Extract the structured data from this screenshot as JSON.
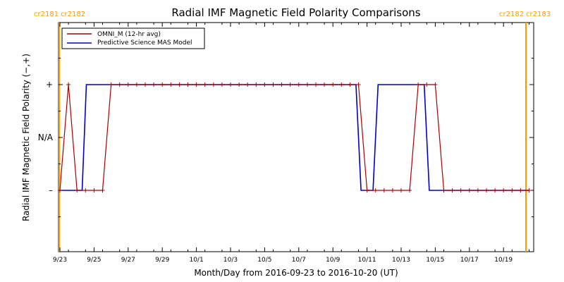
{
  "chart_data": {
    "type": "line",
    "title": "Radial IMF Magnetic Field Polarity Comparisons",
    "xlabel": "Month/Day from 2016-09-23 to 2016-10-20 (UT)",
    "ylabel": "Radial IMF Magnetic Field Polarity (−,+)",
    "x_start_date": "2016-09-23",
    "x_range_days": [
      0,
      27.5
    ],
    "y_ticks": [
      {
        "value": 1,
        "label": "+"
      },
      {
        "value": 0,
        "label": "N/A"
      },
      {
        "value": -1,
        "label": "–"
      }
    ],
    "ylim": [
      -2,
      2
    ],
    "x_ticks": [
      {
        "day": 0,
        "label": "9/23"
      },
      {
        "day": 2,
        "label": "9/25"
      },
      {
        "day": 4,
        "label": "9/27"
      },
      {
        "day": 6,
        "label": "9/29"
      },
      {
        "day": 8,
        "label": "10/1"
      },
      {
        "day": 10,
        "label": "10/3"
      },
      {
        "day": 12,
        "label": "10/5"
      },
      {
        "day": 14,
        "label": "10/7"
      },
      {
        "day": 16,
        "label": "10/9"
      },
      {
        "day": 18,
        "label": "10/11"
      },
      {
        "day": 20,
        "label": "10/13"
      },
      {
        "day": 22,
        "label": "10/15"
      },
      {
        "day": 24,
        "label": "10/17"
      },
      {
        "day": 26,
        "label": "10/19"
      }
    ],
    "carrington_markers": [
      {
        "day": 0.05,
        "left_label": "cr2181",
        "right_label": "cr2182",
        "position": "left"
      },
      {
        "day": 27.5,
        "left_label": "cr2182",
        "right_label": "cr2183",
        "position": "right"
      }
    ],
    "legend_position": "top-left",
    "series": [
      {
        "name": "OMNI_M (12-hr avg)",
        "color": "#aa0000",
        "marker": "plus",
        "values": [
          -1,
          1,
          -1,
          -1,
          -1,
          -1,
          1,
          1,
          1,
          1,
          1,
          1,
          1,
          1,
          1,
          1,
          1,
          1,
          1,
          1,
          1,
          1,
          1,
          1,
          1,
          1,
          1,
          1,
          1,
          1,
          1,
          1,
          1,
          1,
          1,
          1,
          -1,
          -1,
          -1,
          -1,
          -1,
          -1,
          1,
          1,
          1,
          -1,
          -1,
          -1,
          -1,
          -1,
          -1,
          -1,
          -1,
          -1,
          -1,
          -1
        ],
        "x_step_days": 0.5
      },
      {
        "name": "Predictive Science MAS Model",
        "color": "#0000cc",
        "points": [
          [
            0,
            -1
          ],
          [
            1.3,
            -1
          ],
          [
            1.55,
            1
          ],
          [
            17.35,
            1
          ],
          [
            17.65,
            -1
          ],
          [
            18.35,
            -1
          ],
          [
            18.65,
            1
          ],
          [
            21.35,
            1
          ],
          [
            21.65,
            -1
          ],
          [
            27.5,
            -1
          ]
        ]
      }
    ]
  }
}
